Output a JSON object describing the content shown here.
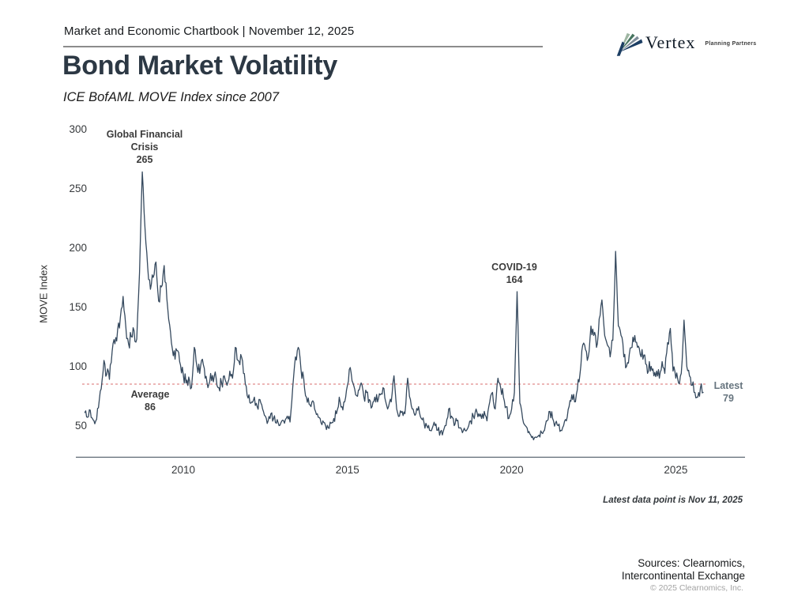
{
  "header": {
    "chartbook_label": "Market and Economic Chartbook | November 12, 2025"
  },
  "logo": {
    "name": "Vertex",
    "tagline": "Planning Partners"
  },
  "title": "Bond Market Volatility",
  "subtitle": "ICE BofAML MOVE Index since 2007",
  "footer": {
    "latest_note": "Latest data point is Nov 11, 2025",
    "sources_line1": "Sources: Clearnomics,",
    "sources_line2": "Intercontinental Exchange",
    "copyright": "© 2025 Clearnomics, Inc."
  },
  "chart_data": {
    "type": "line",
    "title": "Bond Market Volatility",
    "subtitle": "ICE BofAML MOVE Index since 2007",
    "ylabel": "MOVE Index",
    "yticks": [
      50,
      100,
      150,
      200,
      250,
      300
    ],
    "xticks": [
      2010,
      2015,
      2020,
      2025
    ],
    "ylim": [
      25,
      310
    ],
    "xlim": [
      2007.0,
      2026.1
    ],
    "grid": false,
    "legend": "none",
    "average_line": {
      "label": "Average",
      "value": 86,
      "style": "dashed"
    },
    "annotations": [
      {
        "label": "Global Financial Crisis",
        "value": 265,
        "x": 2008.8
      },
      {
        "label": "COVID-19",
        "value": 164,
        "x": 2020.2
      },
      {
        "label": "Average",
        "value": 86
      },
      {
        "label": "Latest",
        "value": 79,
        "x": 2025.86
      }
    ],
    "series": [
      {
        "name": "MOVE Index",
        "start_year": 2007,
        "interval": "monthly",
        "values": [
          62,
          58,
          64,
          56,
          55,
          66,
          82,
          106,
          94,
          90,
          114,
          120,
          132,
          142,
          160,
          134,
          120,
          126,
          131,
          124,
          180,
          265,
          218,
          184,
          166,
          176,
          189,
          156,
          168,
          186,
          158,
          136,
          116,
          107,
          114,
          102,
          94,
          87,
          92,
          83,
          117,
          101,
          95,
          107,
          91,
          83,
          95,
          88,
          91,
          83,
          87,
          93,
          85,
          97,
          91,
          117,
          106,
          111,
          95,
          84,
          77,
          71,
          75,
          67,
          73,
          65,
          59,
          55,
          61,
          57,
          53,
          51,
          55,
          53,
          59,
          54,
          83,
          109,
          117,
          99,
          91,
          75,
          69,
          71,
          65,
          61,
          57,
          55,
          51,
          49,
          53,
          57,
          61,
          75,
          67,
          71,
          85,
          100,
          87,
          77,
          81,
          87,
          75,
          79,
          73,
          67,
          75,
          71,
          77,
          83,
          71,
          67,
          71,
          93,
          65,
          59,
          63,
          61,
          91,
          73,
          65,
          61,
          67,
          57,
          53,
          51,
          47,
          49,
          51,
          47,
          46,
          46,
          51,
          65,
          59,
          51,
          55,
          49,
          45,
          47,
          49,
          55,
          59,
          65,
          61,
          57,
          63,
          55,
          71,
          79,
          65,
          91,
          83,
          75,
          67,
          57,
          65,
          79,
          164,
          70,
          57,
          51,
          45,
          43,
          39,
          41,
          43,
          45,
          47,
          55,
          63,
          57,
          53,
          51,
          47,
          51,
          55,
          67,
          77,
          71,
          81,
          95,
          119,
          115,
          109,
          135,
          127,
          117,
          141,
          157,
          127,
          119,
          109,
          123,
          198,
          135,
          127,
          109,
          101,
          111,
          117,
          127,
          117,
          111,
          107,
          103,
          97,
          101,
          93,
          97,
          91,
          105,
          95,
          121,
          133,
          97,
          91,
          87,
          95,
          140,
          101,
          93,
          85,
          79,
          75,
          83,
          79
        ]
      }
    ],
    "colors": {
      "line": "#35495e",
      "average_line": "#e08a8a",
      "axis": "#5a6570"
    }
  }
}
